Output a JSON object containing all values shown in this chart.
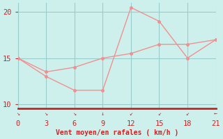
{
  "line1_x": [
    0,
    3,
    6,
    9,
    12,
    15,
    18,
    21
  ],
  "line1_y": [
    15,
    13,
    11.5,
    11.5,
    20.5,
    19,
    15,
    17
  ],
  "line2_x": [
    0,
    3,
    6,
    9,
    12,
    15,
    18,
    21
  ],
  "line2_y": [
    15,
    13.5,
    14.0,
    15.0,
    15.5,
    16.5,
    16.5,
    17
  ],
  "line_color": "#f09090",
  "bg_color": "#cef0ec",
  "grid_color": "#99cccc",
  "axis_color": "#cc2222",
  "text_color": "#cc2222",
  "xlabel": "Vent moyen/en rafales ( km/h )",
  "xlim": [
    0,
    21
  ],
  "ylim": [
    9.5,
    21.0
  ],
  "xticks": [
    0,
    3,
    6,
    9,
    12,
    15,
    18,
    21
  ],
  "yticks": [
    10,
    15,
    20
  ],
  "label_fontsize": 7,
  "tick_fontsize": 7.5
}
